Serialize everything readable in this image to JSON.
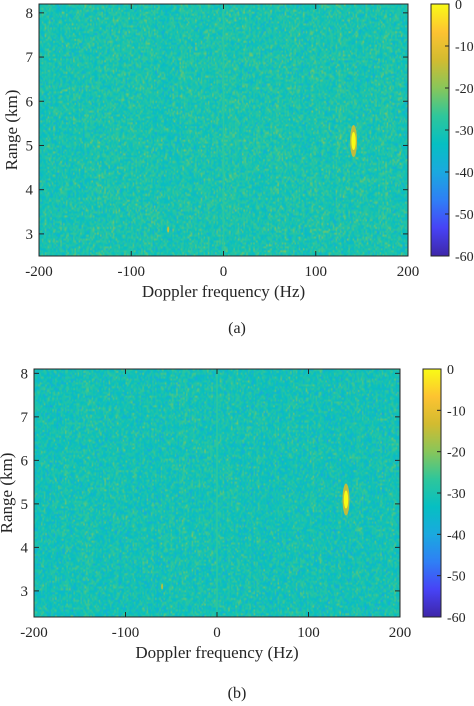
{
  "chart_data": [
    {
      "type": "heatmap",
      "panel": "(a)",
      "xlabel": "Doppler frequency (Hz)",
      "ylabel": "Range (km)",
      "xlim": [
        -200,
        200
      ],
      "ylim": [
        2.5,
        8.2
      ],
      "xticks": [
        -200,
        -100,
        0,
        100,
        200
      ],
      "yticks": [
        3,
        4,
        5,
        6,
        7,
        8
      ],
      "colorbar": {
        "min": -60,
        "max": 0,
        "ticks": [
          0,
          -10,
          -20,
          -30,
          -40,
          -50,
          -60
        ]
      },
      "colormap": [
        "#3e26a8",
        "#4743f6",
        "#2f7ff5",
        "#1aa9df",
        "#06bfc2",
        "#2ec69b",
        "#88c65a",
        "#d2bb30",
        "#fdc331",
        "#f9fb15"
      ],
      "background_level_db": -30,
      "zero_doppler_line_hz": 0,
      "targets": [
        {
          "doppler_hz": 141,
          "range_km": 5.1,
          "level_db": 0
        },
        {
          "doppler_hz": -60,
          "range_km": 3.1,
          "level_db": -14
        }
      ]
    },
    {
      "type": "heatmap",
      "panel": "(b)",
      "xlabel": "Doppler frequency (Hz)",
      "ylabel": "Range (km)",
      "xlim": [
        -200,
        200
      ],
      "ylim": [
        2.4,
        8.1
      ],
      "xticks": [
        -200,
        -100,
        0,
        100,
        200
      ],
      "yticks": [
        3,
        4,
        5,
        6,
        7,
        8
      ],
      "colorbar": {
        "min": -60,
        "max": 0,
        "ticks": [
          0,
          -10,
          -20,
          -30,
          -40,
          -50,
          -60
        ]
      },
      "colormap": [
        "#3e26a8",
        "#4743f6",
        "#2f7ff5",
        "#1aa9df",
        "#06bfc2",
        "#2ec69b",
        "#88c65a",
        "#d2bb30",
        "#fdc331",
        "#f9fb15"
      ],
      "background_level_db": -31,
      "zero_doppler_line_hz": 0,
      "targets": [
        {
          "doppler_hz": 141,
          "range_km": 5.1,
          "level_db": 0
        },
        {
          "doppler_hz": -60,
          "range_km": 3.1,
          "level_db": -16
        }
      ]
    }
  ],
  "captions": [
    "(a)",
    "(b)"
  ]
}
